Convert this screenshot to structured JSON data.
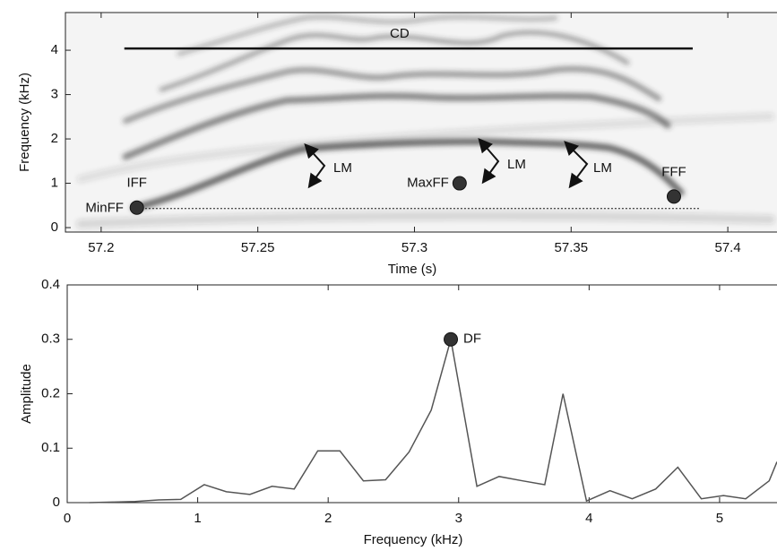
{
  "chart_data": [
    {
      "type": "spectrogram",
      "xlabel": "Time (s)",
      "ylabel": "Frequency (kHz)",
      "xlim": [
        57.1886,
        57.4157
      ],
      "ylim": [
        -0.1,
        4.85
      ],
      "xticks": [
        57.2,
        57.25,
        57.3,
        57.35,
        57.4
      ],
      "yticks": [
        0,
        1,
        2,
        3,
        4
      ],
      "points": [
        {
          "label": "IFF",
          "x": 57.2114,
          "y": 0.45
        },
        {
          "label": "MaxFF",
          "x": 57.3144,
          "y": 1.0
        },
        {
          "label": "FFF",
          "x": 57.3828,
          "y": 0.7
        }
      ],
      "segments": [
        {
          "label": "CD",
          "x": [
            57.2074,
            57.3888
          ],
          "y": [
            4.04,
            4.04
          ],
          "style": "solid"
        },
        {
          "label": "MinFF",
          "x": [
            57.2106,
            57.391
          ],
          "y": [
            0.43,
            0.43
          ],
          "style": "dotted"
        }
      ],
      "annotations": [
        "LM",
        "LM",
        "LM"
      ]
    },
    {
      "type": "line",
      "xlabel": "Frequency (kHz)",
      "ylabel": "Amplitude",
      "xlim": [
        0,
        5.44
      ],
      "ylim": [
        0,
        0.4
      ],
      "xticks": [
        0,
        1,
        2,
        3,
        4,
        5
      ],
      "yticks": [
        0,
        0.1,
        0.2,
        0.3,
        0.4
      ],
      "color": "#555555",
      "x": [
        0.17,
        0.35,
        0.52,
        0.7,
        0.87,
        1.05,
        1.22,
        1.4,
        1.57,
        1.74,
        1.92,
        2.09,
        2.27,
        2.44,
        2.62,
        2.79,
        2.94,
        3.14,
        3.31,
        3.49,
        3.66,
        3.8,
        3.98,
        4.16,
        4.33,
        4.51,
        4.68,
        4.86,
        5.03,
        5.2,
        5.38,
        5.44
      ],
      "values": [
        0,
        0.001,
        0.002,
        0.005,
        0.006,
        0.033,
        0.02,
        0.015,
        0.03,
        0.025,
        0.095,
        0.095,
        0.04,
        0.042,
        0.093,
        0.17,
        0.3,
        0.03,
        0.048,
        0.04,
        0.033,
        0.2,
        0.003,
        0.022,
        0.007,
        0.025,
        0.065,
        0.007,
        0.013,
        0.007,
        0.04,
        0.075
      ],
      "points": [
        {
          "label": "DF",
          "x": 2.94,
          "y": 0.3
        }
      ]
    }
  ]
}
